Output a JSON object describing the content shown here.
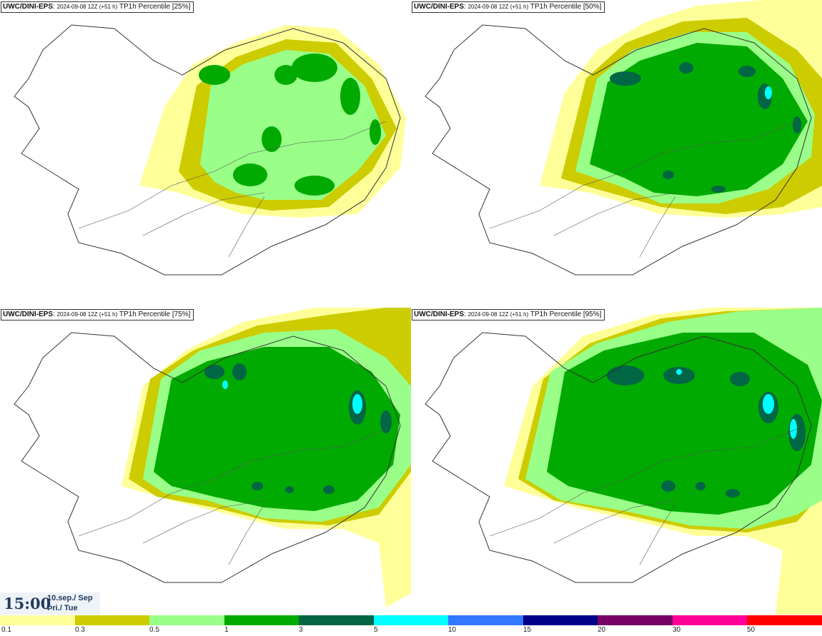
{
  "panels": [
    {
      "model": "UWC/DINI-EPS",
      "run": "2024-09-08 12Z (+51 h)",
      "product": "TP1h Percentile [25%]"
    },
    {
      "model": "UWC/DINI-EPS",
      "run": "2024-09-08 12Z (+51 h)",
      "product": "TP1h Percentile [50%]"
    },
    {
      "model": "UWC/DINI-EPS",
      "run": "2024-09-08 12Z (+51 h)",
      "product": "TP1h Percentile [75%]"
    },
    {
      "model": "UWC/DINI-EPS",
      "run": "2024-09-08 12Z (+51 h)",
      "product": "TP1h Percentile [95%]"
    }
  ],
  "valid": {
    "time": "15:00",
    "date_line1": "10.sep./ Sep",
    "date_line2": "Þri./ Tue"
  },
  "legend": {
    "ticks": [
      "0.1",
      "0.3",
      "0.5",
      "1",
      "3",
      "5",
      "10",
      "15",
      "20",
      "30",
      "50"
    ],
    "colors": [
      "#ffff99",
      "#cccc00",
      "#99ff88",
      "#00aa00",
      "#006644",
      "#00ffff",
      "#3377ff",
      "#000088",
      "#770066",
      "#ff0099",
      "#ff0000"
    ]
  }
}
